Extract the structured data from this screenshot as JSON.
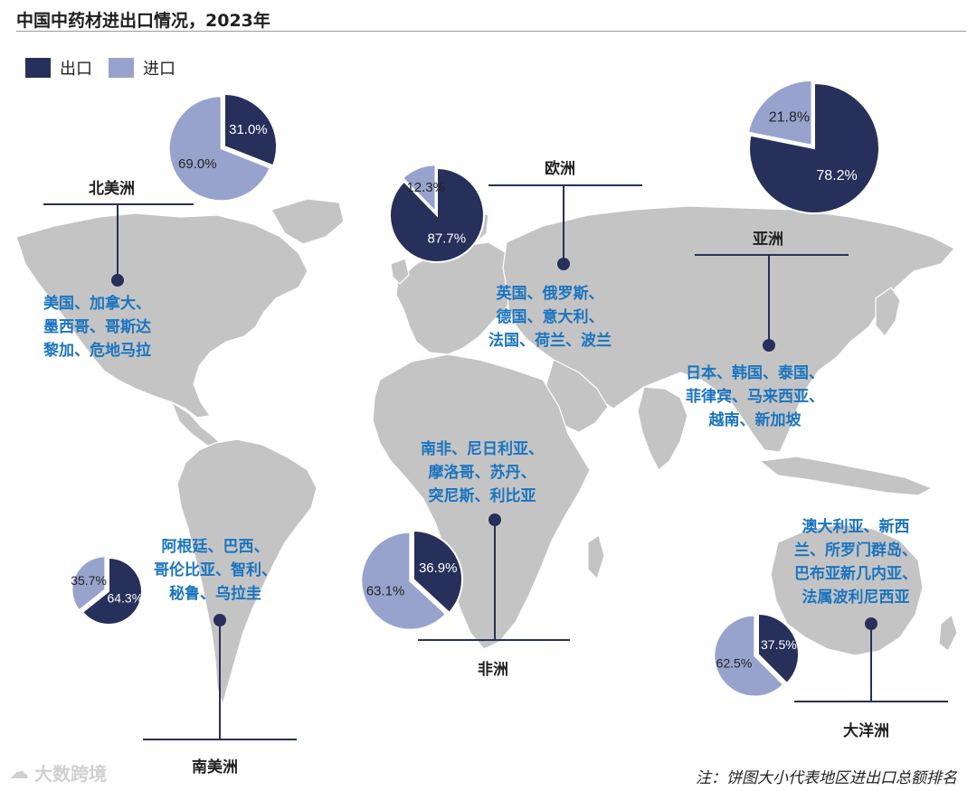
{
  "title": "中国中药材进出口情况，2023年",
  "legend": [
    {
      "label": "出口",
      "color": "#27305a"
    },
    {
      "label": "进口",
      "color": "#97a3cc"
    }
  ],
  "footnote": "注：饼图大小代表地区进出口总额排名",
  "watermark": "大数跨境",
  "colors": {
    "export": "#27305a",
    "import": "#97a3cc",
    "land": "#c4c4c4",
    "line": "#27305a",
    "text_blue": "#1a74c0"
  },
  "chart_data": {
    "type": "pie",
    "series_names": [
      "出口",
      "进口"
    ],
    "regions": [
      {
        "name": "北美洲",
        "export_pct": "31.0%",
        "import_pct": "69.0%",
        "export": 31.0,
        "import": 69.0,
        "countries": [
          "美国、加拿大、",
          "墨西哥、哥斯达",
          "黎加、危地马拉"
        ]
      },
      {
        "name": "欧洲",
        "export_pct": "87.7%",
        "import_pct": "12.3%",
        "export": 87.7,
        "import": 12.3,
        "countries": [
          "英国、俄罗斯、",
          "德国、意大利、",
          "法国、荷兰、波兰"
        ]
      },
      {
        "name": "亚洲",
        "export_pct": "78.2%",
        "import_pct": "21.8%",
        "export": 78.2,
        "import": 21.8,
        "countries": [
          "日本、韩国、泰国、",
          "菲律宾、马来西亚、",
          "越南、新加坡"
        ]
      },
      {
        "name": "非洲",
        "export_pct": "36.9%",
        "import_pct": "63.1%",
        "export": 36.9,
        "import": 63.1,
        "countries": [
          "南非、尼日利亚、",
          "摩洛哥、苏丹、",
          "突尼斯、利比亚"
        ]
      },
      {
        "name": "南美洲",
        "export_pct": "64.3%",
        "import_pct": "35.7%",
        "export": 64.3,
        "import": 35.7,
        "countries": [
          "阿根廷、巴西、",
          "哥伦比亚、智利、",
          "秘鲁、乌拉圭"
        ]
      },
      {
        "name": "大洋洲",
        "export_pct": "37.5%",
        "import_pct": "62.5%",
        "export": 37.5,
        "import": 62.5,
        "countries": [
          "澳大利亚、新西",
          "兰、所罗门群岛、",
          "巴布亚新几内亚、",
          "法属波利尼西亚"
        ]
      }
    ]
  }
}
